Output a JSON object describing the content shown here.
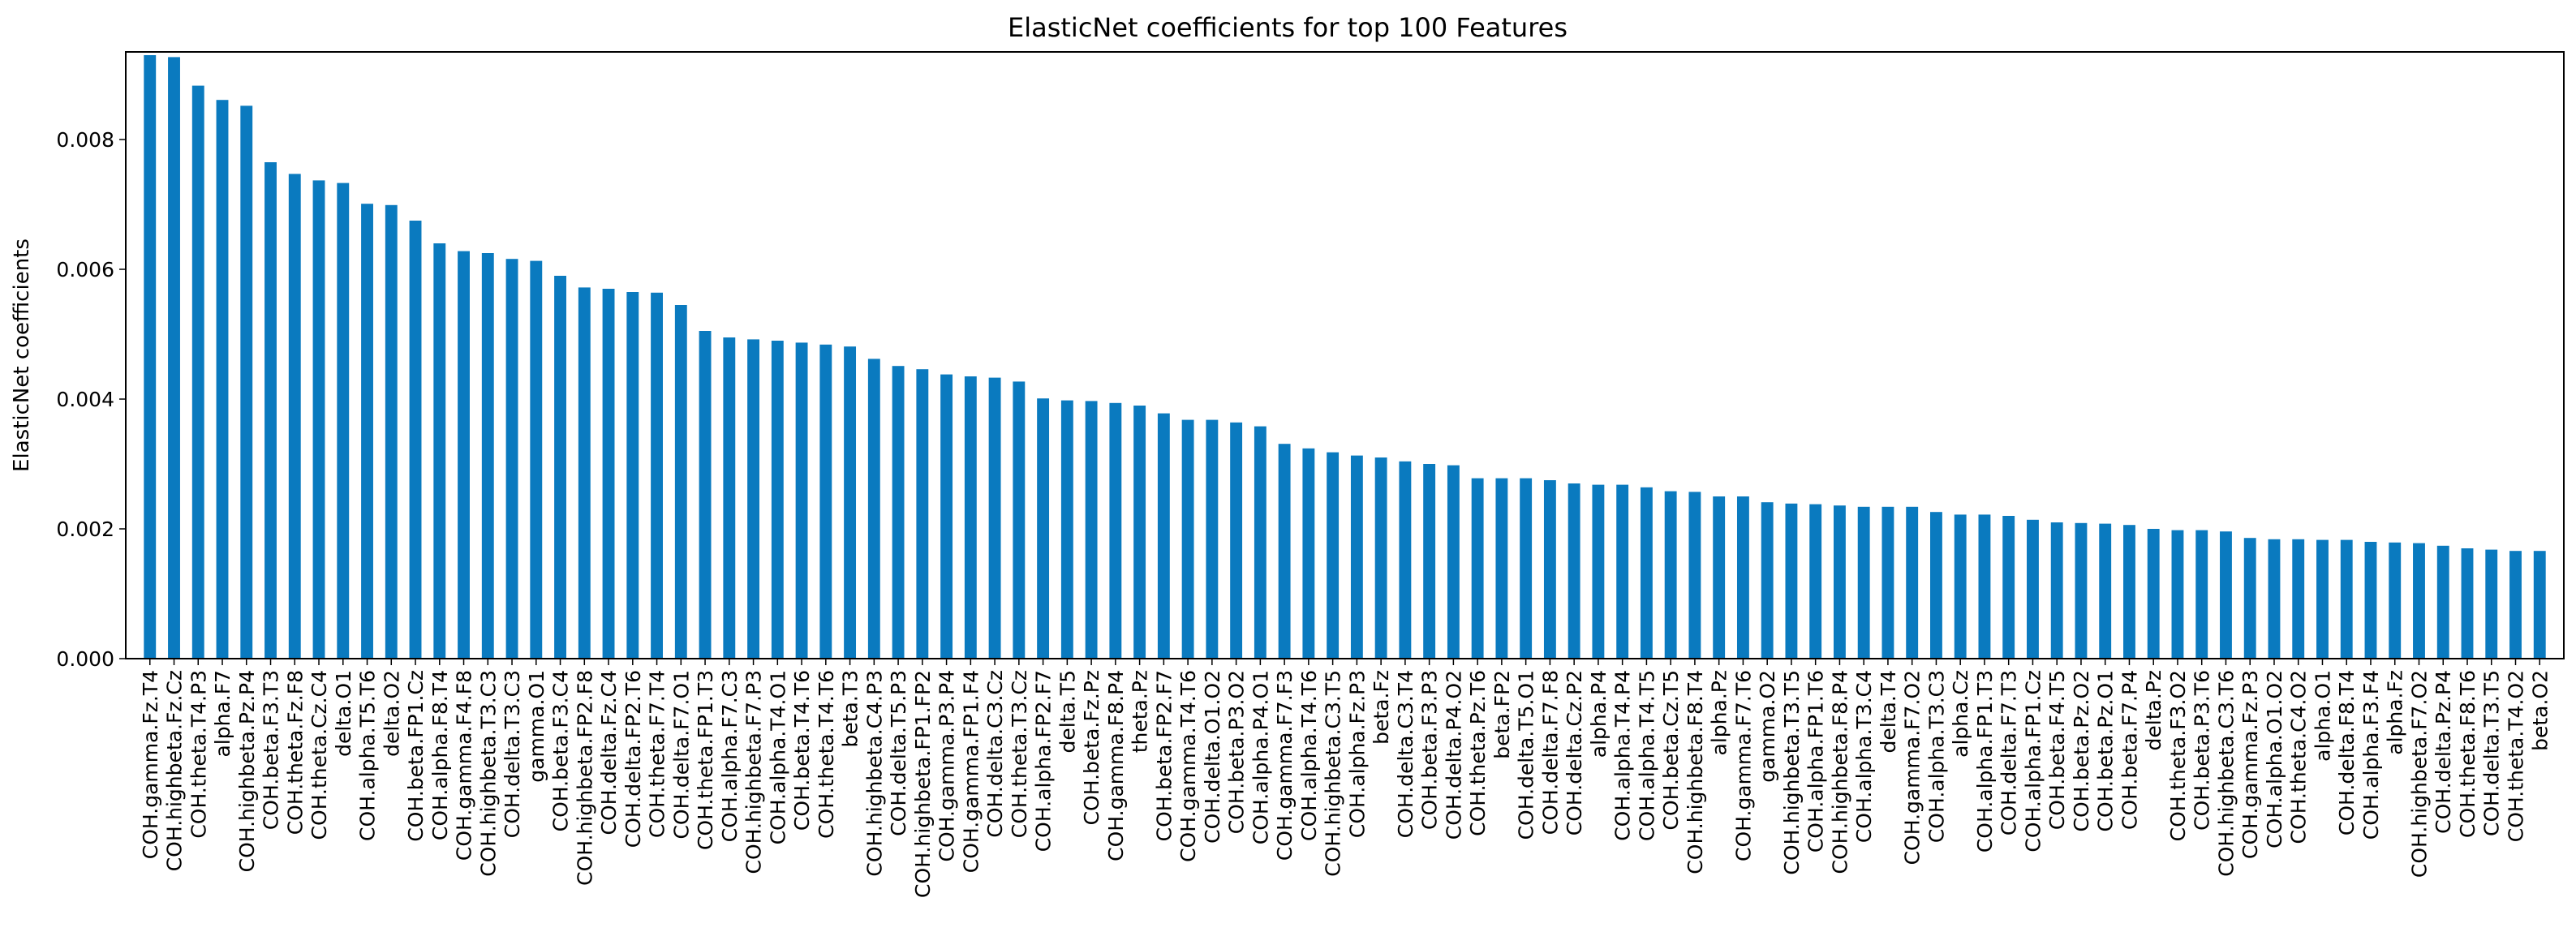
{
  "chart_data": {
    "type": "bar",
    "title": "ElasticNet coefficients for top 100 Features",
    "xlabel": "",
    "ylabel": "ElasticNet coefficients",
    "ylim": [
      0,
      0.00935
    ],
    "yticks": [
      0.0,
      0.002,
      0.004,
      0.006,
      0.008
    ],
    "ytick_labels": [
      "0.000",
      "0.002",
      "0.004",
      "0.006",
      "0.008"
    ],
    "grid": false,
    "bar_color": "#0a7abf",
    "categories": [
      "COH.gamma.Fz.T4",
      "COH.highbeta.Fz.Cz",
      "COH.theta.T4.P3",
      "alpha.F7",
      "COH.highbeta.Pz.P4",
      "COH.beta.F3.T3",
      "COH.theta.Fz.F8",
      "COH.theta.Cz.C4",
      "delta.O1",
      "COH.alpha.T5.T6",
      "delta.O2",
      "COH.beta.FP1.Cz",
      "COH.alpha.F8.T4",
      "COH.gamma.F4.F8",
      "COH.highbeta.T3.C3",
      "COH.delta.T3.C3",
      "gamma.O1",
      "COH.beta.F3.C4",
      "COH.highbeta.FP2.F8",
      "COH.delta.Fz.C4",
      "COH.delta.FP2.T6",
      "COH.theta.F7.T4",
      "COH.delta.F7.O1",
      "COH.theta.FP1.T3",
      "COH.alpha.F7.C3",
      "COH.highbeta.F7.P3",
      "COH.alpha.T4.O1",
      "COH.beta.T4.T6",
      "COH.theta.T4.T6",
      "beta.T3",
      "COH.highbeta.C4.P3",
      "COH.delta.T5.P3",
      "COH.highbeta.FP1.FP2",
      "COH.gamma.P3.P4",
      "COH.gamma.FP1.F4",
      "COH.delta.C3.Cz",
      "COH.theta.T3.Cz",
      "COH.alpha.FP2.F7",
      "delta.T5",
      "COH.beta.Fz.Pz",
      "COH.gamma.F8.P4",
      "theta.Pz",
      "COH.beta.FP2.F7",
      "COH.gamma.T4.T6",
      "COH.delta.O1.O2",
      "COH.beta.P3.O2",
      "COH.alpha.P4.O1",
      "COH.gamma.F7.F3",
      "COH.alpha.T4.T6",
      "COH.highbeta.C3.T5",
      "COH.alpha.Fz.P3",
      "beta.Fz",
      "COH.delta.C3.T4",
      "COH.beta.F3.P3",
      "COH.delta.P4.O2",
      "COH.theta.Pz.T6",
      "beta.FP2",
      "COH.delta.T5.O1",
      "COH.delta.F7.F8",
      "COH.delta.Cz.P2",
      "alpha.P4",
      "COH.alpha.T4.P4",
      "COH.alpha.T4.T5",
      "COH.beta.Cz.T5",
      "COH.highbeta.F8.T4",
      "alpha.Pz",
      "COH.gamma.F7.T6",
      "gamma.O2",
      "COH.highbeta.T3.T5",
      "COH.alpha.FP1.T6",
      "COH.highbeta.F8.P4",
      "COH.alpha.T3.C4",
      "delta.T4",
      "COH.gamma.F7.O2",
      "COH.alpha.T3.C3",
      "alpha.Cz",
      "COH.alpha.FP1.T3",
      "COH.delta.F7.T3",
      "COH.alpha.FP1.Cz",
      "COH.beta.F4.T5",
      "COH.beta.Pz.O2",
      "COH.beta.Pz.O1",
      "COH.beta.F7.P4",
      "delta.Pz",
      "COH.theta.F3.O2",
      "COH.beta.P3.T6",
      "COH.highbeta.C3.T6",
      "COH.gamma.Fz.P3",
      "COH.alpha.O1.O2",
      "COH.theta.C4.O2",
      "alpha.O1",
      "COH.delta.F8.T4",
      "COH.alpha.F3.F4",
      "alpha.Fz",
      "COH.highbeta.F7.O2",
      "COH.delta.Pz.P4",
      "COH.theta.F8.T6",
      "COH.delta.T3.T5",
      "COH.theta.T4.O2",
      "beta.O2"
    ],
    "values": [
      0.0093,
      0.00927,
      0.00883,
      0.00861,
      0.00852,
      0.00765,
      0.00747,
      0.00737,
      0.00733,
      0.00701,
      0.00699,
      0.00675,
      0.0064,
      0.00628,
      0.00625,
      0.00616,
      0.00613,
      0.0059,
      0.00572,
      0.0057,
      0.00565,
      0.00564,
      0.00545,
      0.00505,
      0.00495,
      0.00492,
      0.0049,
      0.00487,
      0.00484,
      0.00481,
      0.00462,
      0.00451,
      0.00446,
      0.00438,
      0.00435,
      0.00433,
      0.00427,
      0.00401,
      0.00398,
      0.00397,
      0.00394,
      0.0039,
      0.00378,
      0.00368,
      0.00368,
      0.00364,
      0.00358,
      0.00331,
      0.00324,
      0.00318,
      0.00313,
      0.0031,
      0.00304,
      0.003,
      0.00298,
      0.00278,
      0.00278,
      0.00278,
      0.00275,
      0.0027,
      0.00268,
      0.00268,
      0.00264,
      0.00258,
      0.00257,
      0.0025,
      0.0025,
      0.00241,
      0.00239,
      0.00238,
      0.00236,
      0.00234,
      0.00234,
      0.00234,
      0.00226,
      0.00222,
      0.00222,
      0.0022,
      0.00214,
      0.0021,
      0.00209,
      0.00208,
      0.00206,
      0.002,
      0.00198,
      0.00198,
      0.00196,
      0.00186,
      0.00184,
      0.00184,
      0.00183,
      0.00183,
      0.0018,
      0.00179,
      0.00178,
      0.00174,
      0.0017,
      0.00168,
      0.00166,
      0.00166
    ]
  }
}
